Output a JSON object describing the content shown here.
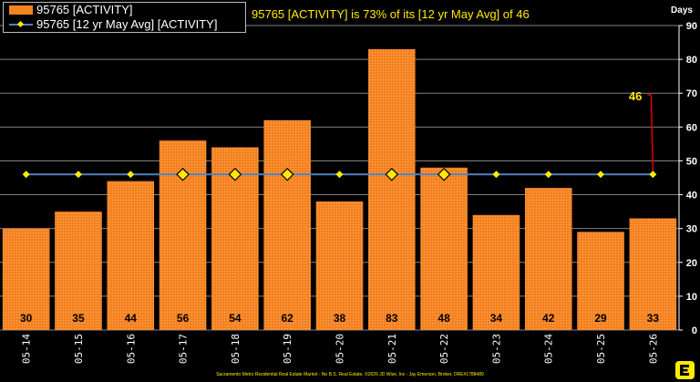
{
  "legend": {
    "activity_label": "95765 [ACTIVITY]",
    "avg_label": "95765 [12 yr May Avg] [ACTIVITY]"
  },
  "headline": "95765 [ACTIVITY] is 73% of its [12 yr May Avg] of 46",
  "footer": "Sacramento Metro Residential Real Estate Market - No B.S. Real Estate, ©2026 JD Wise, Inc - Jay Emerson, Broker, DRE#1788489",
  "colors": {
    "bar": "#f58220",
    "avg_line": "#4f81bd",
    "marker": "#ffeb00",
    "callout": "#e00000"
  },
  "chart_data": {
    "type": "bar",
    "categories": [
      "05-14",
      "05-15",
      "05-16",
      "05-17",
      "05-18",
      "05-19",
      "05-20",
      "05-21",
      "05-22",
      "05-23",
      "05-24",
      "05-25",
      "05-26"
    ],
    "series": [
      {
        "name": "95765 [ACTIVITY]",
        "type": "bar",
        "values": [
          30,
          35,
          44,
          56,
          54,
          62,
          38,
          83,
          48,
          34,
          42,
          29,
          33
        ]
      },
      {
        "name": "95765 [12 yr May Avg] [ACTIVITY]",
        "type": "line",
        "values": [
          46,
          46,
          46,
          46,
          46,
          46,
          46,
          46,
          46,
          46,
          46,
          46,
          46
        ]
      }
    ],
    "data_labels": [
      "30",
      "35",
      "44",
      "56",
      "54",
      "62",
      "38",
      "83",
      "48",
      "34",
      "42",
      "29",
      "33"
    ],
    "highlighted_markers": [
      "05-17",
      "05-18",
      "05-19",
      "05-21",
      "05-22"
    ],
    "annotation": {
      "text": "46",
      "category": "05-26",
      "value": 46
    },
    "y_ticks": [
      "0",
      "10",
      "20",
      "30",
      "40",
      "50",
      "60",
      "70",
      "80",
      "90"
    ],
    "ylabel": "Days",
    "ylim": [
      0,
      90
    ],
    "y_axis_position": "right",
    "grid": true,
    "legend_position": "top-left"
  }
}
